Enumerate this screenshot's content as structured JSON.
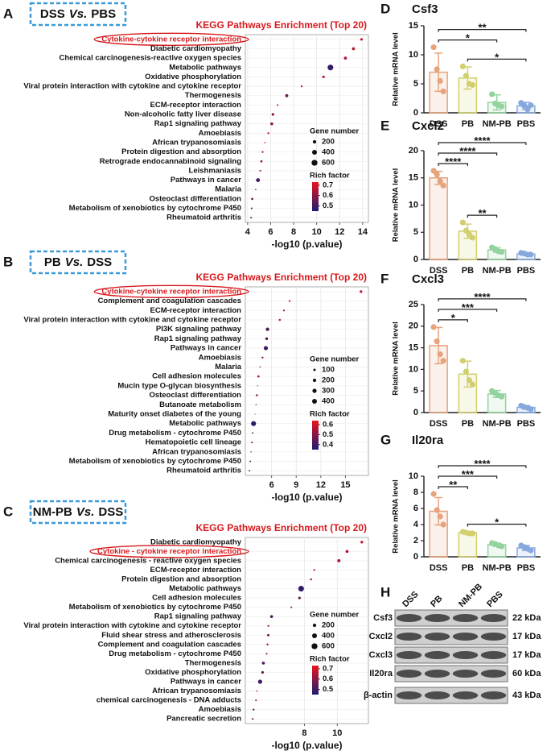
{
  "chart_data": [
    {
      "type": "dot",
      "panel": "A",
      "comparison": {
        "group1": "DSS",
        "vs": "Vs.",
        "group2": "PBS"
      },
      "title": "KEGG Pathways Enrichment (Top 20)",
      "xlabel": "-log10 (p.value)",
      "categories": [
        "Cytokine-cytokine receptor interaction",
        "Diabetic cardiomyopathy",
        "Chemical carcinogenesis-reactive oxygen species",
        "Metabolic pathways",
        "Oxidative phosphorylation",
        "Viral protein interaction with cytokine and cytokine receptor",
        "Thermogenesis",
        "ECM-receptor interaction",
        "Non-alcoholic fatty liver disease",
        "Rap1 signaling pathway",
        "Amoebiasis",
        "African trypanosomiasis",
        "Protein digestion and absorption",
        "Retrograde endocannabinoid signaling",
        "Leishmaniasis",
        "Pathways in cancer",
        "Malaria",
        "Osteoclast differentiation",
        "Metabolism of xenobiotics by cytochrome P450",
        "Rheumatoid arthritis"
      ],
      "values": [
        13.9,
        13.2,
        12.5,
        11.2,
        10.6,
        8.7,
        7.4,
        6.6,
        6.2,
        6.1,
        5.8,
        5.5,
        5.3,
        5.2,
        5.1,
        4.9,
        4.7,
        4.4,
        4.35,
        4.3
      ],
      "gene_number": [
        110,
        150,
        160,
        560,
        110,
        60,
        160,
        50,
        120,
        140,
        60,
        30,
        60,
        80,
        50,
        260,
        30,
        80,
        50,
        50
      ],
      "rich_factor": [
        0.7,
        0.66,
        0.65,
        0.48,
        0.68,
        0.71,
        0.55,
        0.68,
        0.6,
        0.6,
        0.66,
        0.7,
        0.62,
        0.6,
        0.62,
        0.5,
        0.6,
        0.55,
        0.55,
        0.56
      ],
      "highlight": 0,
      "xlim": [
        3.8,
        14.5
      ],
      "xticks": [
        4,
        6,
        8,
        10,
        12,
        14
      ],
      "grid": true,
      "size_legend": {
        "title": "Gene number",
        "ticks": [
          200,
          400,
          600
        ]
      },
      "colorbar": {
        "title": "Rich factor",
        "lim": [
          0.45,
          0.73
        ],
        "ticks": [
          0.7,
          0.6,
          0.5
        ],
        "colors": [
          "#1c1c72",
          "#e8141c"
        ]
      }
    },
    {
      "type": "dot",
      "panel": "B",
      "comparison": {
        "group1": "PB",
        "vs": "Vs.",
        "group2": "DSS"
      },
      "title": "KEGG Pathways Enrichment (Top 20)",
      "xlabel": "-log10 (p.value)",
      "categories": [
        "Cytokine-cytokine receptor interaction",
        "Complement and coagulation cascades",
        "ECM-receptor interaction",
        "Viral protein interaction with cytokine and cytokine receptor",
        "PI3K signaling pathway",
        "Rap1 signaling pathway",
        "Pathways in cancer",
        "Amoebiasis",
        "Malaria",
        "Cell adhesion molecules",
        "Mucin type O-glycan biosynthesis",
        "Osteoclast differentiation",
        "Butanoate metabolism",
        "Maturity onset diabetes of the young",
        "Metabolic pathways",
        "Drug metabolism - cytochrome P450",
        "Hematopoietic cell lineage",
        "African trypanosomiasis",
        "Metabolism of xenobiotics by cytochrome P450",
        "Rheumatoid arthritis"
      ],
      "values": [
        16.9,
        8.2,
        7.5,
        7.0,
        5.5,
        5.4,
        5.3,
        4.9,
        4.6,
        4.4,
        4.3,
        4.2,
        4.1,
        4.0,
        3.8,
        3.7,
        3.6,
        3.5,
        3.4,
        3.3
      ],
      "gene_number": [
        120,
        60,
        60,
        70,
        200,
        130,
        300,
        60,
        30,
        80,
        20,
        70,
        25,
        15,
        420,
        40,
        50,
        25,
        40,
        40
      ],
      "rich_factor": [
        0.58,
        0.62,
        0.6,
        0.58,
        0.42,
        0.45,
        0.4,
        0.5,
        0.5,
        0.55,
        0.58,
        0.5,
        0.5,
        0.6,
        0.38,
        0.45,
        0.5,
        0.5,
        0.45,
        0.45
      ],
      "highlight": 0,
      "xlim": [
        2.8,
        17.8
      ],
      "xticks": [
        6,
        9,
        12,
        15
      ],
      "grid": true,
      "size_legend": {
        "title": "Gene number",
        "ticks": [
          100,
          200,
          300,
          400
        ]
      },
      "colorbar": {
        "title": "Rich factor",
        "lim": [
          0.35,
          0.64
        ],
        "ticks": [
          0.6,
          0.5,
          0.4
        ],
        "colors": [
          "#1c1c72",
          "#e8141c"
        ]
      }
    },
    {
      "type": "dot",
      "panel": "C",
      "comparison": {
        "group1": "NM-PB",
        "vs": "Vs.",
        "group2": "DSS"
      },
      "title": "KEGG Pathways Enrichment (Top 20)",
      "xlabel": "-log10 (p.value)",
      "categories": [
        "Diabetic cardiomyopathy",
        "Cytokine - cytokine receptor interaction",
        "Chemical carcinogenesis - reactive oxygen species",
        "ECM-receptor interaction",
        "Protein digestion and absorption",
        "Metabolic pathways",
        "Cell adhesion molecules",
        "Metabolism of xenobiotics by cytochrome P450",
        "Rap1 signaling pathway",
        "Viral protein interaction with cytokine and cytokine receptor",
        "Fluid shear stress and atherosclerosis",
        "Complement and coagulation cascades",
        "Drug metabolism - cytochrome P450",
        "Thermogenesis",
        "Oxidative phosphorylation",
        "Pathways in cancer",
        "African trypanosomiasis",
        "chemical carcinogenesis - DNA adducts",
        "Amoebiasis",
        "Pancreatic secretion"
      ],
      "values": [
        11.5,
        10.6,
        10.1,
        8.6,
        8.4,
        7.8,
        7.7,
        7.2,
        6.0,
        5.8,
        5.8,
        5.75,
        5.7,
        5.5,
        5.45,
        5.3,
        5.1,
        5.05,
        4.9,
        4.85
      ],
      "gene_number": [
        130,
        150,
        170,
        60,
        70,
        560,
        110,
        50,
        150,
        60,
        100,
        60,
        50,
        150,
        110,
        300,
        30,
        50,
        60,
        50
      ],
      "rich_factor": [
        0.7,
        0.66,
        0.65,
        0.7,
        0.66,
        0.48,
        0.56,
        0.6,
        0.52,
        0.65,
        0.58,
        0.6,
        0.6,
        0.52,
        0.54,
        0.5,
        0.65,
        0.58,
        0.55,
        0.55
      ],
      "highlight": 1,
      "xlim": [
        4.4,
        11.9
      ],
      "xticks": [
        8,
        10
      ],
      "grid": true,
      "size_legend": {
        "title": "Gene number",
        "ticks": [
          200,
          400,
          600
        ]
      },
      "colorbar": {
        "title": "Rich factor",
        "lim": [
          0.45,
          0.73
        ],
        "ticks": [
          0.7,
          0.6,
          0.5
        ],
        "colors": [
          "#1c1c72",
          "#e8141c"
        ]
      }
    },
    {
      "type": "bar",
      "panel": "D",
      "title": "Csf3",
      "ylabel": "Relative mRNA level",
      "categories": [
        "DSS",
        "PB",
        "NM-PB",
        "PBS"
      ],
      "colors": [
        "#e6a37c",
        "#d2cf6e",
        "#93d39e",
        "#86a8dd"
      ],
      "values": [
        7.0,
        6.0,
        1.8,
        1.2
      ],
      "errors": [
        3.3,
        1.9,
        1.3,
        0.6
      ],
      "points": [
        [
          11.3,
          7.5,
          5.5,
          3.7
        ],
        [
          8.0,
          6.4,
          5.0,
          4.8
        ],
        [
          3.2,
          1.6,
          1.3,
          1.1
        ],
        [
          1.7,
          1.2,
          0.6,
          1.3
        ]
      ],
      "ylim": [
        0,
        15
      ],
      "yticks": [
        0,
        5,
        10,
        15
      ],
      "comparisons": [
        {
          "pair": [
            1,
            3
          ],
          "label": "*"
        },
        {
          "pair": [
            0,
            2
          ],
          "label": "*"
        },
        {
          "pair": [
            0,
            3
          ],
          "label": "**"
        }
      ]
    },
    {
      "type": "bar",
      "panel": "E",
      "title": "Cxcl2",
      "ylabel": "Relative mRNA level",
      "categories": [
        "DSS",
        "PB",
        "NM-PB",
        "PBS"
      ],
      "colors": [
        "#e6a37c",
        "#d2cf6e",
        "#93d39e",
        "#86a8dd"
      ],
      "values": [
        15.0,
        5.2,
        1.75,
        1.0
      ],
      "errors": [
        1.2,
        1.3,
        0.4,
        0.15
      ],
      "points": [
        [
          16.3,
          15.6,
          14.4,
          13.6
        ],
        [
          6.8,
          5.3,
          4.6,
          4.0
        ],
        [
          2.2,
          1.9,
          1.5,
          1.4
        ],
        [
          1.2,
          1.1,
          0.9,
          0.9
        ]
      ],
      "ylim": [
        0,
        20
      ],
      "yticks": [
        0,
        5,
        10,
        15,
        20
      ],
      "comparisons": [
        {
          "pair": [
            1,
            2
          ],
          "label": "**"
        },
        {
          "pair": [
            0,
            1
          ],
          "label": "****"
        },
        {
          "pair": [
            0,
            2
          ],
          "label": "****"
        },
        {
          "pair": [
            0,
            3
          ],
          "label": "****"
        }
      ]
    },
    {
      "type": "bar",
      "panel": "F",
      "title": "Cxcl3",
      "ylabel": "Relative mRNA level",
      "categories": [
        "DSS",
        "PB",
        "NM-PB",
        "PBS"
      ],
      "colors": [
        "#e6a37c",
        "#d2cf6e",
        "#93d39e",
        "#86a8dd"
      ],
      "values": [
        15.5,
        8.9,
        4.3,
        1.2
      ],
      "errors": [
        4.2,
        3.0,
        0.8,
        0.4
      ],
      "points": [
        [
          19.8,
          16.5,
          13.5,
          12.0
        ],
        [
          12.0,
          9.5,
          7.5,
          6.5
        ],
        [
          5.0,
          4.5,
          4.0,
          3.7
        ],
        [
          1.6,
          1.3,
          1.1,
          0.8
        ]
      ],
      "ylim": [
        0,
        25
      ],
      "yticks": [
        0,
        5,
        10,
        15,
        20,
        25
      ],
      "comparisons": [
        {
          "pair": [
            0,
            1
          ],
          "label": "*"
        },
        {
          "pair": [
            0,
            2
          ],
          "label": "***"
        },
        {
          "pair": [
            0,
            3
          ],
          "label": "****"
        }
      ]
    },
    {
      "type": "bar",
      "panel": "G",
      "title": "Il20ra",
      "ylabel": "Relative mRNA level",
      "categories": [
        "DSS",
        "PB",
        "NM-PB",
        "PBS"
      ],
      "colors": [
        "#e6a37c",
        "#d2cf6e",
        "#93d39e",
        "#86a8dd"
      ],
      "values": [
        5.65,
        3.0,
        1.5,
        1.1
      ],
      "errors": [
        1.7,
        0.15,
        0.2,
        0.3
      ],
      "points": [
        [
          7.8,
          5.8,
          5.0,
          4.0
        ],
        [
          3.1,
          3.0,
          2.9,
          2.9
        ],
        [
          1.7,
          1.6,
          1.4,
          1.3
        ],
        [
          1.4,
          1.2,
          1.0,
          0.8
        ]
      ],
      "ylim": [
        0,
        10
      ],
      "yticks": [
        0,
        2,
        4,
        6,
        8,
        10
      ],
      "comparisons": [
        {
          "pair": [
            1,
            3
          ],
          "label": "*"
        },
        {
          "pair": [
            0,
            1
          ],
          "label": "**"
        },
        {
          "pair": [
            0,
            2
          ],
          "label": "***"
        },
        {
          "pair": [
            0,
            3
          ],
          "label": "****"
        }
      ]
    }
  ],
  "blot": {
    "panel": "H",
    "lanes": [
      "DSS",
      "PB",
      "NM-PB",
      "PBS"
    ],
    "rows": [
      {
        "protein": "Csf3",
        "size": "22 kDa"
      },
      {
        "protein": "Cxcl2",
        "size": "17 kDa"
      },
      {
        "protein": "Cxcl3",
        "size": "17 kDa"
      },
      {
        "protein": "Il20ra",
        "size": "60 kDa"
      },
      {
        "protein": "β-actin",
        "size": "43 kDa"
      }
    ]
  }
}
